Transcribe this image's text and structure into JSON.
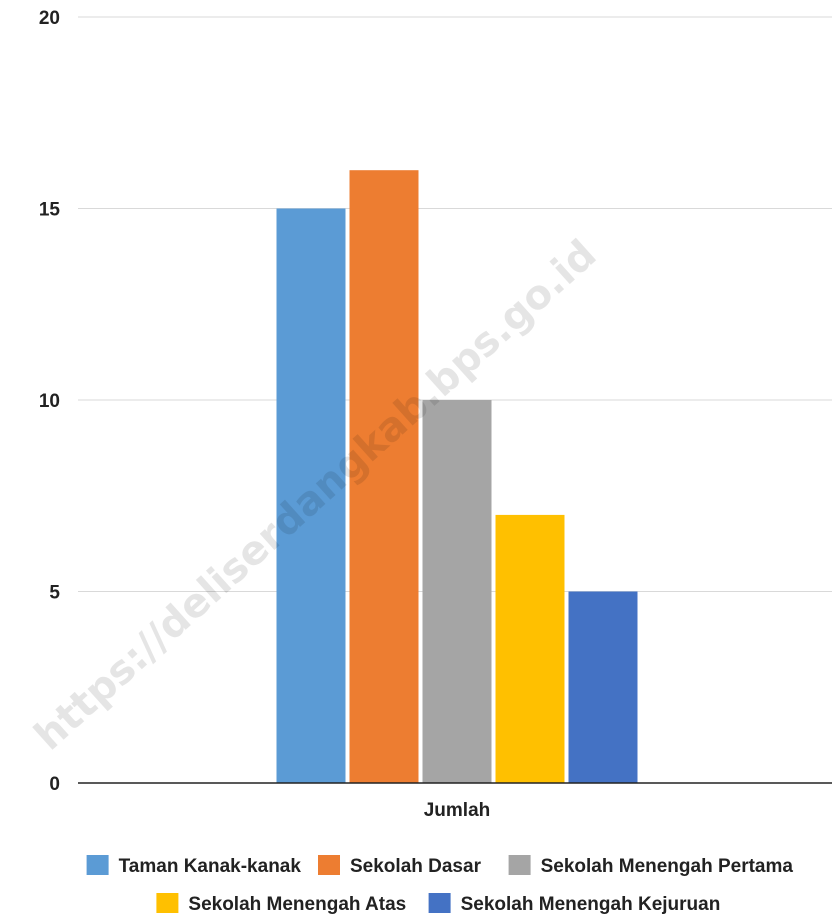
{
  "chart_data": {
    "type": "bar",
    "categories": [
      "Jumlah"
    ],
    "series": [
      {
        "name": "Taman Kanak-kanak",
        "values": [
          15
        ],
        "color": "#5b9bd5"
      },
      {
        "name": "Sekolah Dasar",
        "values": [
          16
        ],
        "color": "#ed7d31"
      },
      {
        "name": "Sekolah Menengah Pertama",
        "values": [
          10
        ],
        "color": "#a5a5a5"
      },
      {
        "name": "Sekolah Menengah Atas",
        "values": [
          7
        ],
        "color": "#ffc000"
      },
      {
        "name": "Sekolah Menengah Kejuruan",
        "values": [
          5
        ],
        "color": "#4472c4"
      }
    ],
    "ylim": [
      0,
      20
    ],
    "yticks": [
      0,
      5,
      10,
      15,
      20
    ],
    "grid": true,
    "legend_position": "bottom"
  },
  "watermark": "https://deliserdangkab.bps.go.id"
}
